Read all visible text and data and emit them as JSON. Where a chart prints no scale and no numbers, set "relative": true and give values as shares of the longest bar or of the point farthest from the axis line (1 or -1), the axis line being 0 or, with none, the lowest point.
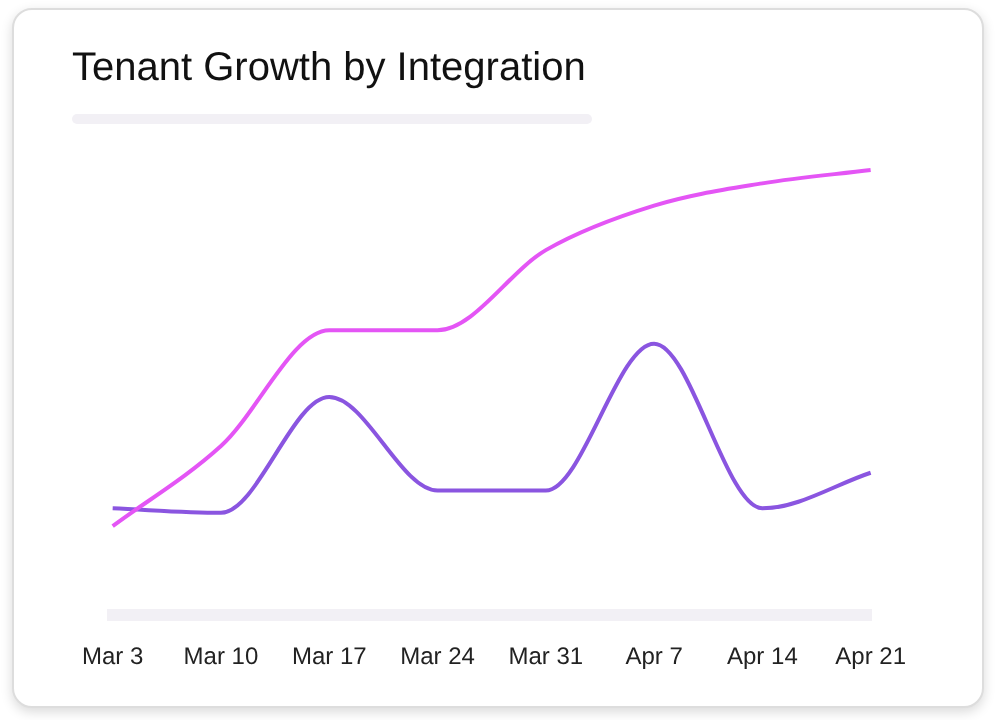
{
  "chart_data": {
    "type": "line",
    "title": "Tenant Growth by Integration",
    "relative": true,
    "categories": [
      "Mar 3",
      "Mar 10",
      "Mar 17",
      "Mar 24",
      "Mar 31",
      "Apr 7",
      "Apr 14",
      "Apr 21"
    ],
    "series": [
      {
        "color": "#e455f5",
        "values": [
          0.2,
          0.38,
          0.64,
          0.64,
          0.82,
          0.92,
          0.97,
          1
        ]
      },
      {
        "color": "#8a55e0",
        "values": [
          0.24,
          0.23,
          0.49,
          0.28,
          0.28,
          0.61,
          0.24,
          0.32
        ]
      }
    ],
    "grid": false,
    "legend": false,
    "marker": "none",
    "line_style": "solid"
  }
}
